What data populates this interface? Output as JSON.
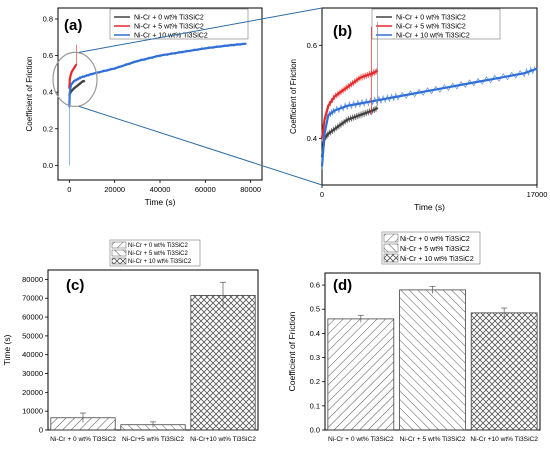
{
  "chart_data": [
    {
      "panel": "(a)",
      "type": "line",
      "xlabel": "Time (s)",
      "ylabel": "Coefficient of Friction",
      "xlim": [
        -5000,
        85000
      ],
      "ylim": [
        -0.08,
        0.86
      ],
      "xticks": [
        "0",
        "20000",
        "40000",
        "60000",
        "80000"
      ],
      "xtick_values": [
        0,
        20000,
        40000,
        60000,
        80000
      ],
      "yticks": [
        "0.0",
        "0.2",
        "0.4",
        "0.6",
        "0.8"
      ],
      "ytick_values": [
        0,
        0.2,
        0.4,
        0.6,
        0.8
      ],
      "legend_placement": "top-center",
      "series": [
        {
          "name": "Ni-Cr + 0 wt% Ti3SiC2",
          "color": "#404040",
          "x": [
            0,
            200,
            600,
            1200,
            2000,
            3000,
            4000,
            5000,
            6000,
            6800
          ],
          "y": [
            0.38,
            0.39,
            0.4,
            0.41,
            0.42,
            0.43,
            0.44,
            0.45,
            0.46,
            0.46
          ]
        },
        {
          "name": "Ni-Cr + 5 wt% Ti3SiC2",
          "color": "#e8282a",
          "x": [
            0,
            200,
            500,
            1000,
            1500,
            2000,
            2500,
            3000
          ],
          "y": [
            0.42,
            0.47,
            0.49,
            0.51,
            0.52,
            0.53,
            0.54,
            0.55
          ]
        },
        {
          "name": "Ni-Cr + 10 wt% Ti3SiC2",
          "color": "#2f6fd8",
          "x": [
            0,
            200,
            700,
            2000,
            5000,
            10000,
            20000,
            30000,
            40000,
            50000,
            60000,
            70000,
            78000
          ],
          "y": [
            0.32,
            0.4,
            0.44,
            0.46,
            0.48,
            0.5,
            0.53,
            0.57,
            0.6,
            0.62,
            0.64,
            0.655,
            0.665
          ]
        }
      ]
    },
    {
      "panel": "(b)",
      "type": "line",
      "xlabel": "Time (s)",
      "ylabel": "Coefficient of Friction",
      "xlim": [
        0,
        17000
      ],
      "ylim": [
        0.3,
        0.68
      ],
      "xticks": [
        "0",
        "17000"
      ],
      "xtick_values": [
        0,
        17000
      ],
      "yticks": [
        "0.4",
        "0.6"
      ],
      "ytick_values": [
        0.4,
        0.6
      ],
      "legend_placement": "top-center",
      "series": [
        {
          "name": "Ni-Cr + 0 wt% Ti3SiC2",
          "color": "#404040",
          "x": [
            0,
            200,
            500,
            1000,
            1500,
            2000,
            2500,
            3000,
            3500,
            4000,
            4400
          ],
          "y": [
            0.36,
            0.4,
            0.41,
            0.42,
            0.43,
            0.44,
            0.445,
            0.45,
            0.455,
            0.46,
            0.465
          ]
        },
        {
          "name": "Ni-Cr + 5 wt% Ti3SiC2",
          "color": "#e8282a",
          "x": [
            0,
            200,
            500,
            1000,
            1500,
            2000,
            2500,
            3000,
            3500,
            4000,
            4400
          ],
          "y": [
            0.4,
            0.44,
            0.47,
            0.49,
            0.5,
            0.51,
            0.52,
            0.53,
            0.535,
            0.54,
            0.545
          ]
        },
        {
          "name": "Ni-Cr + 10 wt% Ti3SiC2",
          "color": "#2f6fd8",
          "x": [
            0,
            200,
            500,
            1000,
            2000,
            3000,
            4000,
            5000,
            6000,
            8000,
            10000,
            12000,
            14000,
            16000,
            17000
          ],
          "y": [
            0.34,
            0.41,
            0.45,
            0.46,
            0.47,
            0.475,
            0.48,
            0.485,
            0.49,
            0.5,
            0.51,
            0.52,
            0.53,
            0.54,
            0.55
          ]
        }
      ]
    },
    {
      "panel": "(c)",
      "type": "bar",
      "ylabel": "Time (s)",
      "ylim": [
        0,
        85000
      ],
      "yticks": [
        "0",
        "10000",
        "20000",
        "30000",
        "40000",
        "50000",
        "60000",
        "70000",
        "80000"
      ],
      "ytick_values": [
        0,
        10000,
        20000,
        30000,
        40000,
        50000,
        60000,
        70000,
        80000
      ],
      "categories": [
        "Ni-Cr + 0 wt% Ti3SiC2",
        "Ni-Cr+5 wt% Ti3SiC2",
        "Ni-Cr+10 wt% Ti3SiC2"
      ],
      "values": [
        6500,
        2800,
        71500
      ],
      "errors": [
        2500,
        1500,
        7000
      ],
      "legend": [
        "Ni-Cr + 0 wt% Ti3SiC2",
        "Ni-Cr + 5 wt% Ti3SiC2",
        "Ni-Cr + 10 wt% Ti3SiC2"
      ],
      "legend_placement": "top-center"
    },
    {
      "panel": "(d)",
      "type": "bar",
      "ylabel": "Coefficient of Friction",
      "ylim": [
        0,
        0.65
      ],
      "yticks": [
        "0.0",
        "0.1",
        "0.2",
        "0.3",
        "0.4",
        "0.5",
        "0.6"
      ],
      "ytick_values": [
        0,
        0.1,
        0.2,
        0.3,
        0.4,
        0.5,
        0.6
      ],
      "categories": [
        "Ni-Cr + 0 wt% Ti3SiC2",
        "Ni-Cr + 5 wt% Ti3SiC2",
        "Ni-Cr +10 wt% Ti3SiC2"
      ],
      "values": [
        0.46,
        0.58,
        0.485
      ],
      "errors": [
        0.015,
        0.015,
        0.02
      ],
      "legend": [
        "Ni-Cr + 0 wt% Ti3SiC2",
        "Ni-Cr + 5 wt% Ti3SiC2",
        "Ni-Cr + 10 wt% Ti3SiC2"
      ],
      "legend_placement": "top-center"
    }
  ]
}
